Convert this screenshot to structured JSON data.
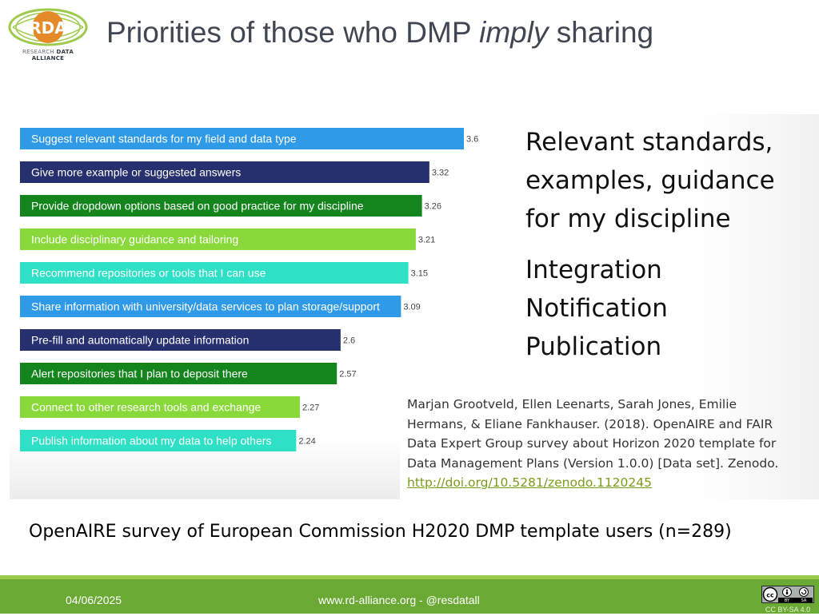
{
  "logo": {
    "mark": "RDA",
    "sub_a": "RESEARCH ",
    "sub_b": "DATA ALLIANCE"
  },
  "title": {
    "before": "Priorities of those who DMP ",
    "emphasis": "imply",
    "after": " sharing"
  },
  "chart_data": {
    "type": "bar",
    "orientation": "horizontal",
    "categories": [
      "Suggest relevant standards for my field and data type",
      "Give more example or suggested answers",
      "Provide dropdown options based on good practice for my discipline",
      "Include disciplinary guidance and tailoring",
      "Recommend repositories or tools that I can use",
      "Share information with university/data services to plan storage/support",
      "Pre-fill and automatically update information",
      "Alert repositories that I plan to deposit there",
      "Connect to other research tools and exchange",
      "Publish information about my data to help others"
    ],
    "values": [
      3.6,
      3.32,
      3.26,
      3.21,
      3.15,
      3.09,
      2.6,
      2.57,
      2.27,
      2.24
    ],
    "value_labels": [
      "3.6",
      "3.32",
      "3.26",
      "3.21",
      "3.15",
      "3.09",
      "2.6",
      "2.57",
      "2.27",
      "2.24"
    ],
    "colors": [
      "#2f9ae8",
      "#27306f",
      "#14841d",
      "#8ad93a",
      "#2ee0c6",
      "#2f9ae8",
      "#27306f",
      "#14841d",
      "#8ad93a",
      "#2ee0c6"
    ],
    "xlim": [
      0,
      3.6
    ],
    "grid": false,
    "legend": "none"
  },
  "right_points": {
    "block1": [
      "Relevant standards,",
      "examples, guidance",
      "for my discipline"
    ],
    "block2": [
      "Integration",
      "Notification",
      "Publication"
    ]
  },
  "citation": {
    "text": [
      "Marjan Grootveld, Ellen Leenarts, Sarah Jones, Emilie",
      "Hermans, & Eliane Fankhauser. (2018). OpenAIRE and FAIR",
      "Data Expert Group survey about Horizon 2020 template for",
      "Data Management Plans (Version 1.0.0) [Data set]. Zenodo."
    ],
    "link": "http://doi.org/10.5281/zenodo.1120245"
  },
  "survey_caption": "OpenAIRE survey of European Commission H2020 DMP template users (n=289)",
  "footer": {
    "date": "04/06/2025",
    "site": "www.rd-alliance.org -  @resdatall",
    "license": "CC BY-SA 4.0",
    "license_badge": [
      "BY",
      "SA"
    ]
  },
  "colors": {
    "accent_green": "#6aaa34",
    "footer_stripe": "#9ccb4c",
    "link_green": "#7a9c1a",
    "rda_orange": "#e48a28"
  },
  "icons": [
    "rda-logo-icon",
    "cc-license-icon",
    "cc-by-icon",
    "cc-sa-icon"
  ]
}
